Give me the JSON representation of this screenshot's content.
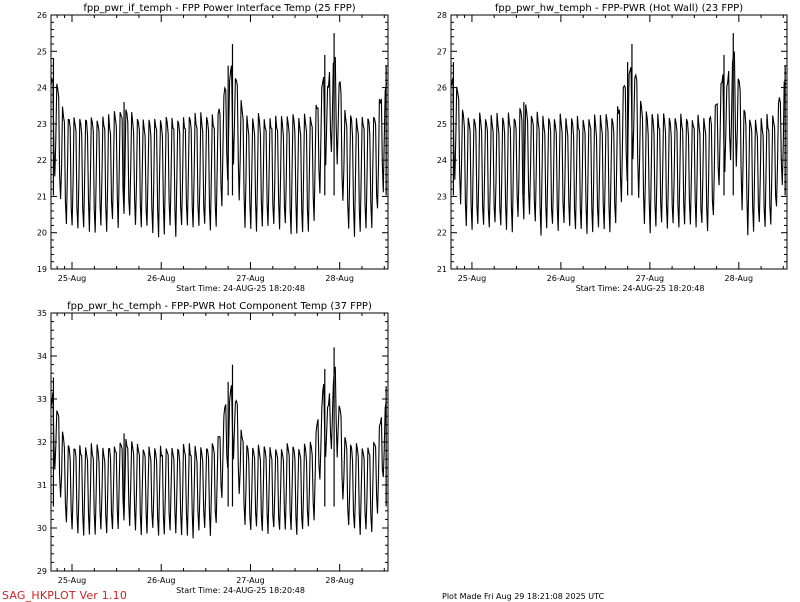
{
  "footer": {
    "program": "SAG_HKPLOT  Ver 1.10",
    "plot_made": "Plot Made Fri Aug 29 18:21:08 2025 UTC"
  },
  "chart_data": [
    {
      "type": "line",
      "title": "fpp_pwr_if_temph - FPP Power Interface Temp (25 FPP)",
      "xlabel": "Start Time: 24-AUG-25  18:20:48",
      "x_range": [
        "24-Aug-25 18:20",
        "28-Aug-25 13:00"
      ],
      "x_tick_labels": [
        "25-Aug",
        "26-Aug",
        "27-Aug",
        "28-Aug"
      ],
      "ylim": [
        19,
        26
      ],
      "y_ticks": [
        19,
        20,
        21,
        22,
        23,
        24,
        25,
        26
      ],
      "daily_cycle_low": 20.1,
      "daily_cycle_high": 23.2,
      "peaks": [
        {
          "time": "24-Aug 19:00",
          "value": 24.8
        },
        {
          "time": "25-Aug 14:00",
          "value": 23.6
        },
        {
          "time": "26-Aug 18:00",
          "value": 24.6
        },
        {
          "time": "26-Aug 19:10",
          "value": 25.2
        },
        {
          "time": "27-Aug 20:00",
          "value": 24.9
        },
        {
          "time": "27-Aug 22:30",
          "value": 25.5
        },
        {
          "time": "28-Aug 12:30",
          "value": 24.6
        }
      ]
    },
    {
      "type": "line",
      "title": "fpp_pwr_hw_temph - FPP-PWR (Hot Wall) (23 FPP)",
      "xlabel": "Start Time: 24-AUG-25  18:20:48",
      "x_range": [
        "24-Aug-25 18:20",
        "28-Aug-25 13:00"
      ],
      "x_tick_labels": [
        "25-Aug",
        "26-Aug",
        "27-Aug",
        "28-Aug"
      ],
      "ylim": [
        21,
        28
      ],
      "y_ticks": [
        21,
        22,
        23,
        24,
        25,
        26,
        27,
        28
      ],
      "daily_cycle_low": 22.1,
      "daily_cycle_high": 25.2,
      "peaks": [
        {
          "time": "24-Aug 19:00",
          "value": 26.7
        },
        {
          "time": "25-Aug 14:00",
          "value": 25.6
        },
        {
          "time": "26-Aug 18:00",
          "value": 26.7
        },
        {
          "time": "26-Aug 19:10",
          "value": 27.2
        },
        {
          "time": "27-Aug 20:00",
          "value": 26.9
        },
        {
          "time": "27-Aug 22:30",
          "value": 27.5
        },
        {
          "time": "28-Aug 12:30",
          "value": 26.6
        }
      ]
    },
    {
      "type": "line",
      "title": "fpp_pwr_hc_temph - FPP-PWR Hot Component Temp (37 FPP)",
      "xlabel": "Start Time: 24-AUG-25  18:20:48",
      "x_range": [
        "24-Aug-25 18:20",
        "28-Aug-25 13:00"
      ],
      "x_tick_labels": [
        "25-Aug",
        "26-Aug",
        "27-Aug",
        "28-Aug"
      ],
      "ylim": [
        29,
        35
      ],
      "y_ticks": [
        29,
        30,
        31,
        32,
        33,
        34,
        35
      ],
      "daily_cycle_low": 29.9,
      "daily_cycle_high": 31.9,
      "peaks": [
        {
          "time": "24-Aug 19:00",
          "value": 33.5
        },
        {
          "time": "25-Aug 14:00",
          "value": 32.2
        },
        {
          "time": "26-Aug 18:00",
          "value": 33.4
        },
        {
          "time": "26-Aug 19:10",
          "value": 33.8
        },
        {
          "time": "27-Aug 20:00",
          "value": 33.7
        },
        {
          "time": "27-Aug 22:30",
          "value": 34.2
        },
        {
          "time": "28-Aug 12:30",
          "value": 33.3
        }
      ]
    }
  ]
}
